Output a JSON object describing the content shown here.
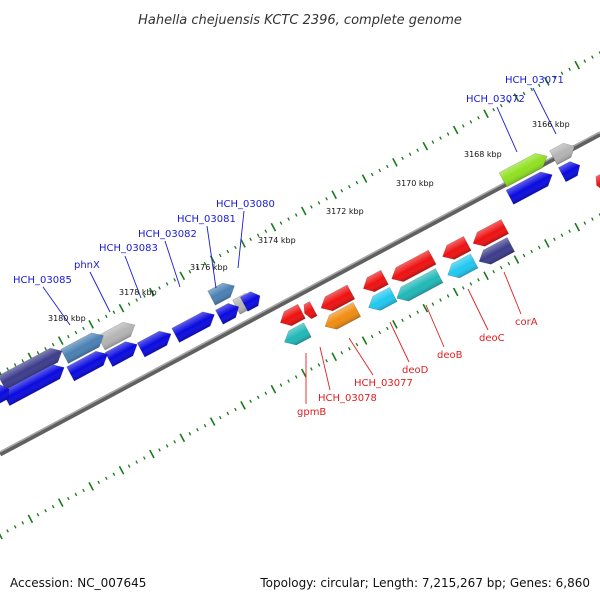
{
  "title": "Hahella chejuensis KCTC 2396, complete genome",
  "footer": {
    "accession": "Accession: NC_007645",
    "summary": "Topology: circular; Length: 7,215,267 bp; Genes: 6,860"
  },
  "ticks": [
    {
      "label": "3166 kbp"
    },
    {
      "label": "3168 kbp"
    },
    {
      "label": "3170 kbp"
    },
    {
      "label": "3172 kbp"
    },
    {
      "label": "3174 kbp"
    },
    {
      "label": "3176 kbp"
    },
    {
      "label": "3178 kbp"
    },
    {
      "label": "3180 kbp"
    }
  ],
  "forward_genes": [
    {
      "label": "HCH_03071"
    },
    {
      "label": "HCH_03072"
    },
    {
      "label": "HCH_03080"
    },
    {
      "label": "HCH_03081"
    },
    {
      "label": "HCH_03082"
    },
    {
      "label": "HCH_03083"
    },
    {
      "label": "phnX"
    },
    {
      "label": "HCH_03085"
    }
  ],
  "reverse_genes": [
    {
      "label": "corA"
    },
    {
      "label": "deoC"
    },
    {
      "label": "deoB"
    },
    {
      "label": "deoD"
    },
    {
      "label": "HCH_03077"
    },
    {
      "label": "HCH_03078"
    },
    {
      "label": "gpmB"
    }
  ],
  "colors": {
    "forward_label": "#1a1ad6",
    "reverse_label": "#e02020",
    "backbone": "#808080",
    "tick": "#1a7a1a",
    "cds_blue": "#0a0ae0",
    "cds_red": "#ee1111",
    "cds_teal": "#20b8b8",
    "cds_cyan": "#20c8f0",
    "cds_orange": "#f08c10",
    "cds_navy": "#3c3c8c",
    "cds_steel": "#4a80b4",
    "cds_grey": "#b4b4b4",
    "cds_lime": "#90e020"
  }
}
